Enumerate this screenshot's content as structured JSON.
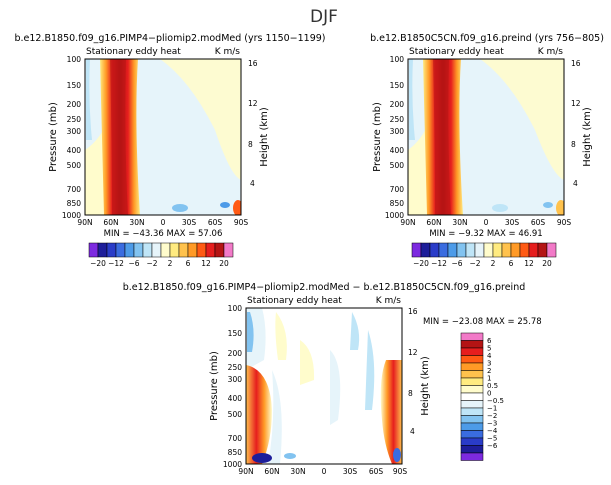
{
  "page_title": "DJF",
  "colors": {
    "panel_scale": [
      "#7d2ae0",
      "#1e1e9a",
      "#2a3cc8",
      "#3a6ce0",
      "#4d9be8",
      "#82c3f0",
      "#bfe5f7",
      "#e6f4fa",
      "#fffccc",
      "#ffeb80",
      "#ffc24d",
      "#ff9a26",
      "#ff5a14",
      "#e61e1e",
      "#b41414",
      "#f27ac8"
    ],
    "diff_scale": [
      "#f27ac8",
      "#b41414",
      "#e61e1e",
      "#ff5a14",
      "#ff9a26",
      "#ffc24d",
      "#ffeb80",
      "#fffccc",
      "#ffffff",
      "#e6f4fa",
      "#bfe5f7",
      "#82c3f0",
      "#4d9be8",
      "#3a6ce0",
      "#2a3cc8",
      "#1e1e9a",
      "#7d2ae0"
    ]
  },
  "chart_data": [
    {
      "type": "heatmap",
      "title": "b.e12.B1850.f09_g16.PIMP4−pliomip2.modMed (yrs 1150−1199)",
      "subtitle": "Stationary eddy heat",
      "units": "K m/s",
      "xlabel": "",
      "ylabel": "Pressure (mb)",
      "y2label": "Height (km)",
      "x_ticks": [
        "90N",
        "60N",
        "30N",
        "0",
        "30S",
        "60S",
        "90S"
      ],
      "y_ticks": [
        "100",
        "150",
        "200",
        "250",
        "300",
        "400",
        "500",
        "700",
        "850",
        "1000"
      ],
      "y2_ticks": [
        "16",
        "12",
        "8",
        "4"
      ],
      "stats": "MIN = −43.36   MAX =  57.06",
      "min": -43.36,
      "max": 57.06
    },
    {
      "type": "heatmap",
      "title": "b.e12.B1850C5CN.f09_g16.preind (yrs 756−805)",
      "subtitle": "Stationary eddy heat",
      "units": "K m/s",
      "xlabel": "",
      "ylabel": "Pressure (mb)",
      "y2label": "Height (km)",
      "x_ticks": [
        "90N",
        "60N",
        "30N",
        "0",
        "30S",
        "60S",
        "90S"
      ],
      "y_ticks": [
        "100",
        "150",
        "200",
        "250",
        "300",
        "400",
        "500",
        "700",
        "850",
        "1000"
      ],
      "y2_ticks": [
        "16",
        "12",
        "8",
        "4"
      ],
      "stats": "MIN = −9.32   MAX =  46.91",
      "min": -9.32,
      "max": 46.91
    },
    {
      "type": "heatmap",
      "title": "b.e12.B1850.f09_g16.PIMP4−pliomip2.modMed − b.e12.B1850C5CN.f09_g16.preind",
      "subtitle": "Stationary eddy heat",
      "units": "K m/s",
      "xlabel": "",
      "ylabel": "Pressure (mb)",
      "y2label": "Height (km)",
      "x_ticks": [
        "90N",
        "60N",
        "30N",
        "0",
        "30S",
        "60S",
        "90S"
      ],
      "y_ticks": [
        "100",
        "150",
        "200",
        "250",
        "300",
        "400",
        "500",
        "700",
        "850",
        "1000"
      ],
      "y2_ticks": [
        "16",
        "12",
        "8",
        "4"
      ],
      "stats": "MIN = −23.08   MAX =  25.78",
      "min": -23.08,
      "max": 25.78
    }
  ],
  "colorbars": {
    "panel_labels": [
      "−20",
      "−12",
      "−6",
      "−2",
      "2",
      "6",
      "12",
      "20"
    ],
    "diff_labels": [
      "6",
      "5",
      "4",
      "3",
      "2",
      "1",
      "0.5",
      "0",
      "−0.5",
      "−1",
      "−2",
      "−3",
      "−4",
      "−5",
      "−6"
    ]
  }
}
